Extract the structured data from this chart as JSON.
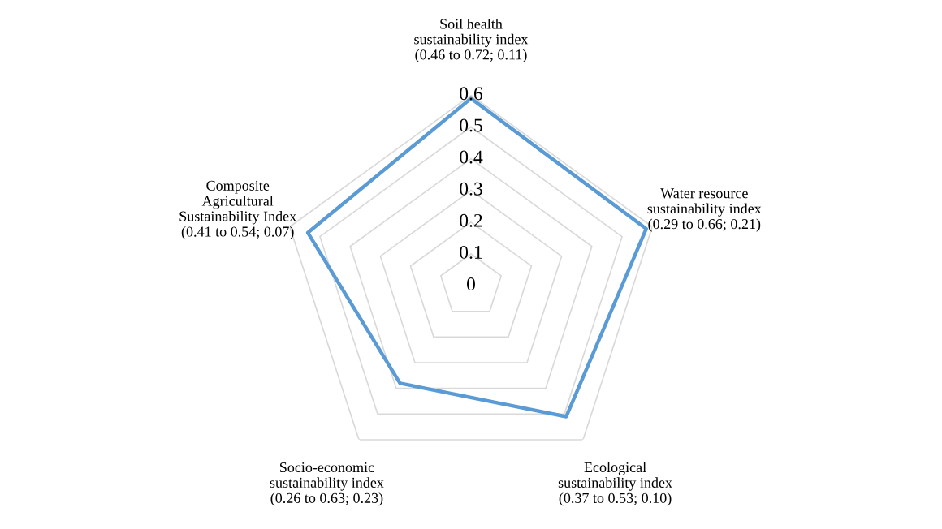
{
  "chart_data": {
    "type": "radar",
    "categories": [
      "Soil health\nsustainability index\n(0.46 to 0.72; 0.11)",
      "Water resource\nsustainability index\n(0.29 to 0.66; 0.21)",
      "Ecological\nsustainability index\n(0.37 to 0.53; 0.10)",
      "Socio-economic\nsustainability index\n(0.26 to 0.63; 0.23)",
      "Composite\nAgricultural\nSustainability Index\n(0.41 to 0.54; 0.07)"
    ],
    "series": [
      {
        "color": "#5b9bd5",
        "values": [
          0.59,
          0.58,
          0.51,
          0.38,
          0.54
        ]
      }
    ],
    "ylim": [
      0,
      0.6
    ],
    "yticks": [
      0,
      0.1,
      0.2,
      0.3,
      0.4,
      0.5,
      0.6
    ],
    "grid": true,
    "marker": "none",
    "line_style": "solid"
  }
}
